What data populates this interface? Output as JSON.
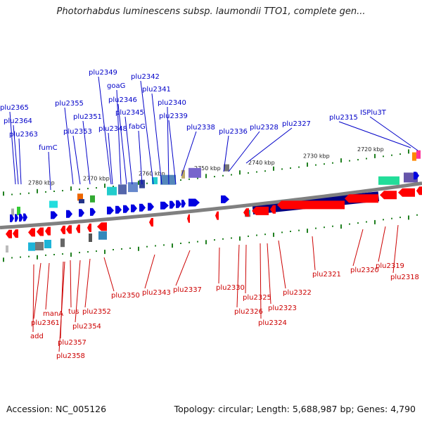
{
  "title": "Photorhabdus luminescens subsp. laumondii TTO1, complete gen...",
  "footer": {
    "accession": "Accession: NC_005126",
    "summary": "Topology: circular; Length: 5,688,987 bp; Genes: 4,790"
  },
  "colors": {
    "forward_gene": "#0000e0",
    "reverse_gene": "#ff0000",
    "backbone": "#808080",
    "ruler_tick": "#208020",
    "forward_label": "#0000c8",
    "reverse_label": "#cc0000"
  },
  "ruler_labels": [
    "2780 kbp",
    "2770 kbp",
    "2760 kbp",
    "2750 kbp",
    "2740 kbp",
    "2730 kbp",
    "2720 kbp"
  ],
  "forward_labels": [
    "plu2365",
    "plu2364",
    "plu2363",
    "fumC",
    "plu2355",
    "plu2353",
    "plu2351",
    "plu2349",
    "goaG",
    "plu2346",
    "plu2348",
    "plu2345",
    "fabG",
    "plu2342",
    "plu2341",
    "plu2340",
    "plu2339",
    "plu2338",
    "plu2336",
    "plu2328",
    "plu2327",
    "plu2315",
    "ISPlu3T"
  ],
  "reverse_labels": [
    "add",
    "plu2361",
    "manA",
    "plu2357",
    "plu2358",
    "tus",
    "plu2354",
    "plu2352",
    "plu2350",
    "plu2343",
    "plu2337",
    "plu2330",
    "plu2326",
    "plu2325",
    "plu2324",
    "plu2323",
    "plu2322",
    "plu2321",
    "plu2320",
    "plu2319",
    "plu2318"
  ]
}
